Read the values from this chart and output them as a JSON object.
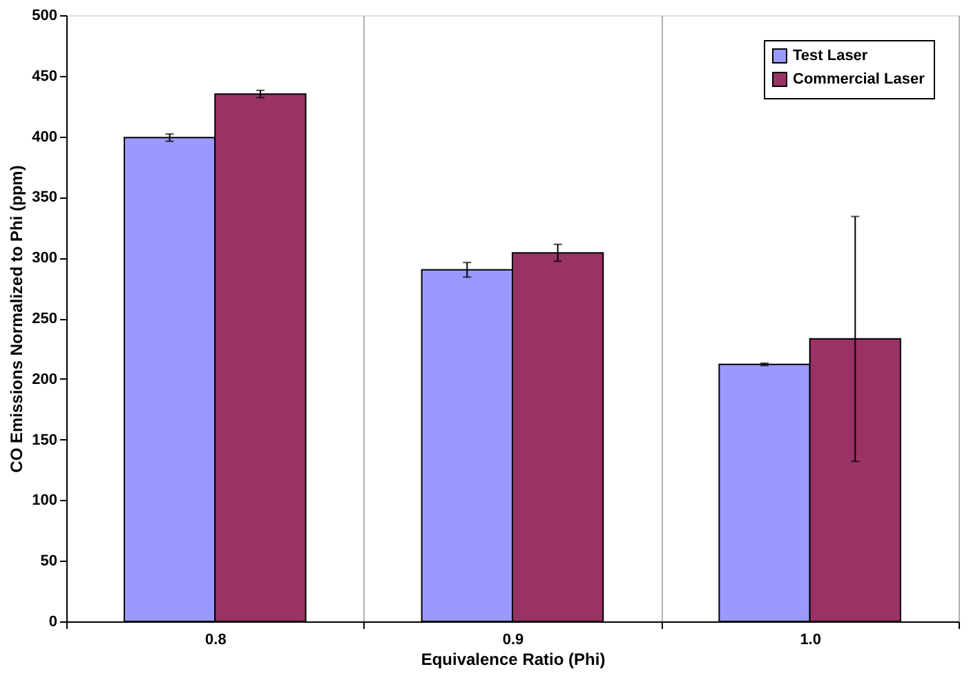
{
  "chart_data": {
    "type": "bar",
    "xlabel": "Equivalence Ratio (Phi)",
    "ylabel": "CO Emissions Normalized to Phi (ppm)",
    "categories": [
      "0.8",
      "0.9",
      "1.0"
    ],
    "series": [
      {
        "name": "Test Laser",
        "color": "#9999ff",
        "values": [
          399,
          290,
          212
        ],
        "errors": [
          3,
          6,
          1
        ]
      },
      {
        "name": "Commercial Laser",
        "color": "#993366",
        "values": [
          435,
          304,
          233
        ],
        "errors": [
          3,
          7,
          101
        ]
      }
    ],
    "ylim": [
      0,
      500
    ],
    "yticks": [
      0,
      50,
      100,
      150,
      200,
      250,
      300,
      350,
      400,
      450,
      500
    ],
    "grid": "x",
    "legend": "top right"
  }
}
